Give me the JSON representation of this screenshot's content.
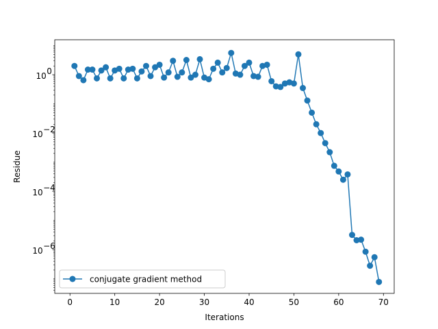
{
  "chart_data": {
    "type": "line",
    "title": "",
    "xlabel": "Iterations",
    "ylabel": "Residue",
    "yscale": "log",
    "xlim": [
      -3.4,
      72.4
    ],
    "ylim_log10": [
      -7.5,
      1.2
    ],
    "xticks": [
      0,
      10,
      20,
      30,
      40,
      50,
      60,
      70
    ],
    "xtick_labels": [
      "0",
      "10",
      "20",
      "30",
      "40",
      "50",
      "60",
      "70"
    ],
    "yticks_exp": [
      -6,
      -4,
      -2,
      0
    ],
    "ytick_labels": [
      "10",
      "10",
      "10",
      "10"
    ],
    "ytick_exponents": [
      "−6",
      "−4",
      "−2",
      "0"
    ],
    "grid": false,
    "legend_position": "lower-left",
    "marker": "circle",
    "color": "#1f77b4",
    "series": [
      {
        "name": "conjugate gradient method",
        "x": [
          1,
          2,
          3,
          4,
          5,
          6,
          7,
          8,
          9,
          10,
          11,
          12,
          13,
          14,
          15,
          16,
          17,
          18,
          19,
          20,
          21,
          22,
          23,
          24,
          25,
          26,
          27,
          28,
          29,
          30,
          31,
          32,
          33,
          34,
          35,
          36,
          37,
          38,
          39,
          40,
          41,
          42,
          43,
          44,
          45,
          46,
          47,
          48,
          49,
          50,
          51,
          52,
          53,
          54,
          55,
          56,
          57,
          58,
          59,
          60,
          61,
          62,
          63,
          64,
          65,
          66,
          67,
          68,
          69
        ],
        "y": [
          2.0,
          0.9,
          0.65,
          1.5,
          1.5,
          0.75,
          1.4,
          1.8,
          0.75,
          1.4,
          1.6,
          0.75,
          1.5,
          1.6,
          0.75,
          1.3,
          2.0,
          0.9,
          1.8,
          2.2,
          0.8,
          1.2,
          3.0,
          0.85,
          1.2,
          3.2,
          0.8,
          1.0,
          3.4,
          0.8,
          0.7,
          1.6,
          2.6,
          1.2,
          1.7,
          5.6,
          1.1,
          1.0,
          2.0,
          2.6,
          0.9,
          0.85,
          2.0,
          2.2,
          0.6,
          0.4,
          0.38,
          0.5,
          0.55,
          0.5,
          5.0,
          0.35,
          0.13,
          0.05,
          0.02,
          0.01,
          0.0045,
          0.0022,
          0.00075,
          0.00048,
          0.00025,
          0.00038,
          3.2e-06,
          2.1e-06,
          2.2e-06,
          8.5e-07,
          2.8e-07,
          5.5e-07,
          7.8e-08
        ]
      }
    ]
  }
}
